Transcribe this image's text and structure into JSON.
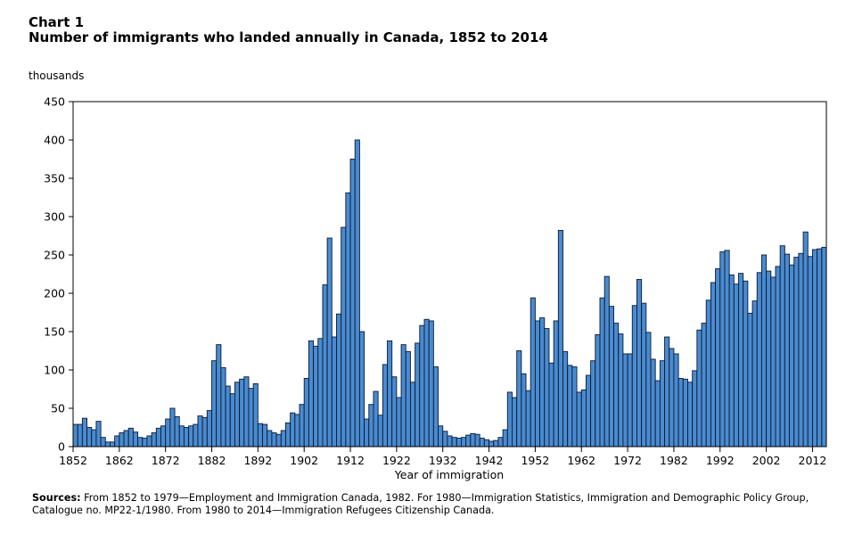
{
  "header": {
    "chart_number": "Chart 1",
    "title": "Number of immigrants who landed annually in Canada, 1852 to 2014",
    "unit_label": "thousands"
  },
  "sources": {
    "label": "Sources:",
    "text": "From 1852 to 1979—Employment and Immigration Canada, 1982. For 1980—Immigration Statistics, Immigration and Demographic Policy Group, Catalogue no. MP22-1/1980. From 1980 to 2014—Immigration Refugees Citizenship Canada."
  },
  "colors": {
    "bar_fill": "#4a8bd0",
    "bar_stroke": "#0a1a33"
  },
  "chart_data": {
    "type": "bar",
    "title": "Number of immigrants who landed annually in Canada, 1852 to 2014",
    "xlabel": "Year of immigration",
    "ylabel": "thousands",
    "ylim": [
      0,
      450
    ],
    "yticks": [
      0,
      50,
      100,
      150,
      200,
      250,
      300,
      350,
      400,
      450
    ],
    "xticks": [
      1852,
      1862,
      1872,
      1882,
      1892,
      1902,
      1912,
      1922,
      1932,
      1942,
      1952,
      1962,
      1972,
      1982,
      1992,
      2002,
      2012
    ],
    "grid": false,
    "x_start": 1852,
    "x_end": 2014,
    "values": [
      29,
      29,
      37,
      25,
      22,
      33,
      12,
      6,
      6,
      14,
      18,
      21,
      24,
      19,
      12,
      11,
      14,
      18,
      24,
      27,
      36,
      50,
      39,
      27,
      25,
      27,
      29,
      40,
      38,
      47,
      112,
      133,
      103,
      79,
      69,
      84,
      88,
      91,
      76,
      82,
      30,
      29,
      21,
      18,
      16,
      21,
      31,
      44,
      42,
      55,
      89,
      138,
      131,
      141,
      211,
      272,
      143,
      173,
      286,
      331,
      375,
      400,
      150,
      36,
      55,
      72,
      41,
      107,
      138,
      91,
      64,
      133,
      124,
      84,
      135,
      158,
      166,
      164,
      104,
      27,
      20,
      14,
      12,
      11,
      12,
      15,
      17,
      16,
      11,
      9,
      7,
      8,
      12,
      22,
      71,
      64,
      125,
      95,
      73,
      194,
      164,
      168,
      154,
      109,
      164,
      282,
      124,
      106,
      104,
      71,
      74,
      93,
      112,
      146,
      194,
      222,
      183,
      161,
      147,
      121,
      121,
      184,
      218,
      187,
      149,
      114,
      86,
      112,
      143,
      128,
      121,
      89,
      88,
      84,
      99,
      152,
      161,
      191,
      214,
      232,
      254,
      256,
      224,
      212,
      226,
      216,
      174,
      190,
      227,
      250,
      229,
      221,
      235,
      262,
      251,
      237,
      247,
      252,
      280,
      248,
      257,
      258,
      260
    ]
  }
}
